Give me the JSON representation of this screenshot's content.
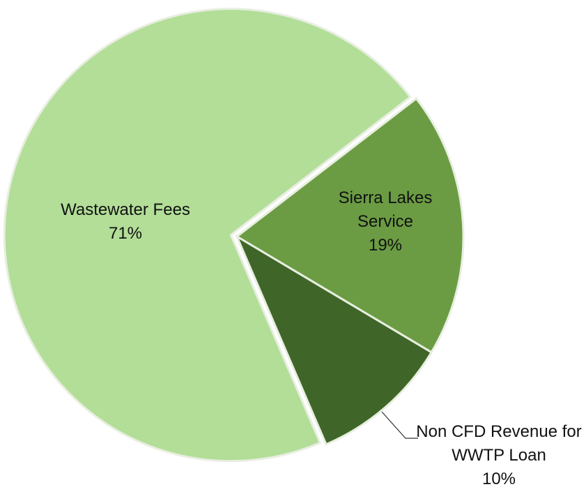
{
  "chart_data": {
    "type": "pie",
    "categories": [
      "Wastewater Fees",
      "Sierra Lakes Service",
      "Non CFD Revenue for WWTP Loan"
    ],
    "values": [
      71,
      19,
      10
    ],
    "value_labels": [
      "71%",
      "19%",
      "10%"
    ],
    "colors": [
      "#b2de98",
      "#6b9c43",
      "#3f6628"
    ]
  }
}
